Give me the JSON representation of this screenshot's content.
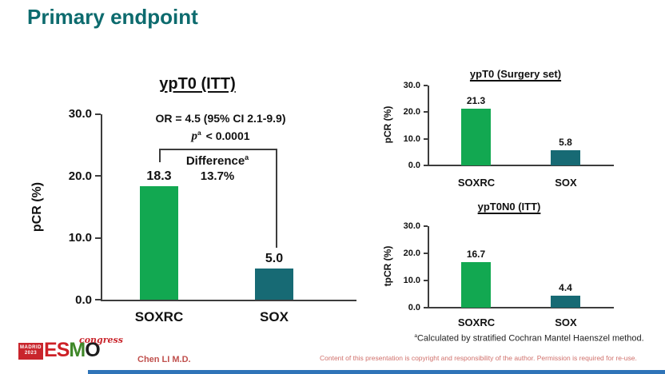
{
  "slide": {
    "title": "Primary endpoint",
    "author": "Chen LI M.D.",
    "copyright": "Content of this presentation is copyright and responsibility of the author. Permission is required for re-use.",
    "footnote": {
      "sup": "a",
      "text": "Calculated by stratified Cochran Mantel Haenszel method."
    }
  },
  "logo": {
    "city": "MADRID",
    "year": "2023",
    "letters": [
      "E",
      "S",
      "M",
      "O"
    ],
    "event": "congress"
  },
  "colors": {
    "title_teal": "#0d6b6e",
    "bar_green": "#12a851",
    "bar_teal": "#176a74",
    "axis": "#3d3d3d",
    "esmo_red": "#cd2127",
    "esmo_green": "#3f8728",
    "author_red": "#c0504d",
    "copyright_red": "#d0706b",
    "bottom_bar_blue": "#2f74b8"
  },
  "chart_data": [
    {
      "type": "bar",
      "title": "ypT0 (ITT)",
      "categories": [
        "SOXRC",
        "SOX"
      ],
      "values": [
        18.3,
        5.0
      ],
      "value_labels": [
        "18.3",
        "5.0"
      ],
      "xlabel": "",
      "ylabel": "pCR (%)",
      "ylim": [
        0,
        30
      ],
      "yticks": [
        "30.0",
        "20.0",
        "10.0",
        "0.0"
      ],
      "grid": false,
      "annotations": {
        "or_text": "OR = 4.5 (95% CI 2.1-9.9)",
        "p_symbol": "p",
        "p_sup": "a",
        "p_value": "< 0.0001",
        "difference_label": "Difference",
        "difference_sup": "a",
        "difference_value": "13.7%"
      }
    },
    {
      "type": "bar",
      "title": "ypT0 (Surgery set)",
      "categories": [
        "SOXRC",
        "SOX"
      ],
      "values": [
        21.3,
        5.8
      ],
      "value_labels": [
        "21.3",
        "5.8"
      ],
      "xlabel": "",
      "ylabel": "pCR (%)",
      "ylim": [
        0,
        30
      ],
      "yticks": [
        "30.0",
        "20.0",
        "10.0",
        "0.0"
      ],
      "grid": false
    },
    {
      "type": "bar",
      "title": "ypT0N0 (ITT)",
      "categories": [
        "SOXRC",
        "SOX"
      ],
      "values": [
        16.7,
        4.4
      ],
      "value_labels": [
        "16.7",
        "4.4"
      ],
      "xlabel": "",
      "ylabel": "tpCR (%)",
      "ylim": [
        0,
        30
      ],
      "yticks": [
        "30.0",
        "20.0",
        "10.0",
        "0.0"
      ],
      "grid": false
    }
  ]
}
